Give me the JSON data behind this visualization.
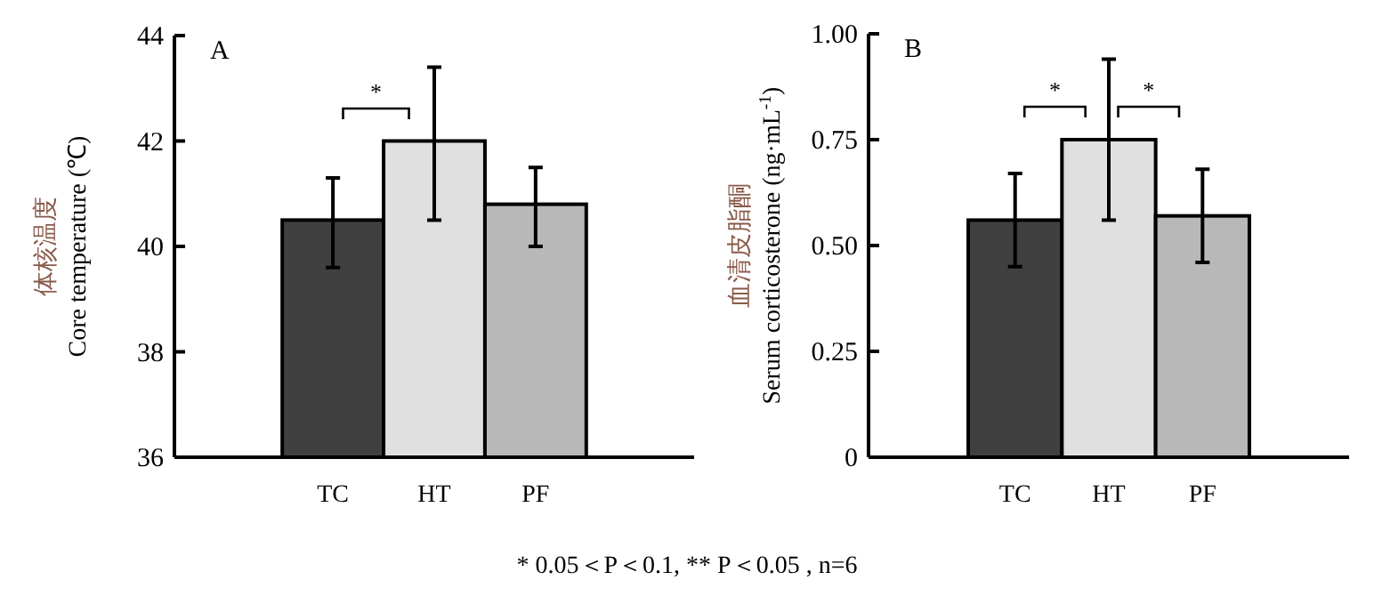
{
  "chart_data": [
    {
      "type": "bar",
      "title": "A",
      "ylabel": "体核温度\nCore temperature (℃)",
      "categories": [
        "TC",
        "HT",
        "PF"
      ],
      "values": [
        40.5,
        42.0,
        40.8
      ],
      "colors": [
        "#404040",
        "#e0e0e0",
        "#b8b8b8"
      ],
      "errors": [
        [
          39.6,
          41.3
        ],
        [
          40.5,
          43.4
        ],
        [
          40.0,
          41.5
        ]
      ],
      "ylim": [
        36,
        44
      ],
      "yticks": [
        36,
        38,
        40,
        42,
        44
      ],
      "annotations": [
        "*"
      ]
    },
    {
      "type": "bar",
      "title": "B",
      "ylabel": "血清皮脂酮\nSerum corticosterone (ng·mL$^{-1}$)",
      "categories": [
        "TC",
        "HT",
        "PF"
      ],
      "values": [
        0.56,
        0.75,
        0.57
      ],
      "colors": [
        "#404040",
        "#e0e0e0",
        "#b8b8b8"
      ],
      "errors": [
        [
          0.45,
          0.67
        ],
        [
          0.56,
          0.94
        ],
        [
          0.46,
          0.68
        ]
      ],
      "ylim": [
        0,
        1
      ],
      "yticks": [
        0,
        0.25,
        {
          "value": 0.5,
          "label": "0.50"
        },
        0.75,
        {
          "value": 1,
          "label": "1.00"
        }
      ],
      "annotations": [
        "*",
        "*",
        "* 0.05＜P＜0.1, ** P＜0.05 , n=6"
      ]
    }
  ]
}
